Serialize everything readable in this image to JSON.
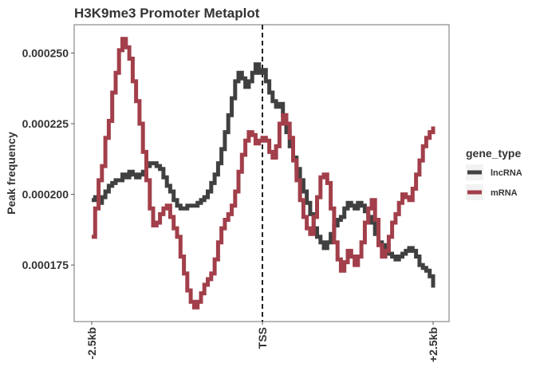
{
  "chart_data": {
    "type": "line",
    "title": "H3K9me3 Promoter Metaplot",
    "xlabel": "",
    "ylabel": "Peak frequency",
    "x_ticks": [
      "-2.5kb",
      "TSS",
      "+2.5kb"
    ],
    "xlim": [
      -2500,
      2500
    ],
    "ylim": [
      0.000155,
      0.00026
    ],
    "y_ticks": [
      0.000175,
      0.0002,
      0.000225,
      0.00025
    ],
    "y_tick_labels": [
      "0.000175",
      "0.000200",
      "0.000225",
      "0.000250"
    ],
    "vline_at": 0,
    "grid": false,
    "legend_position": "right",
    "legend_title": "gene_type",
    "series": [
      {
        "name": "lncRNA",
        "color": "#404040",
        "x": [
          -2500,
          -2450,
          -2400,
          -2350,
          -2300,
          -2250,
          -2200,
          -2150,
          -2100,
          -2050,
          -2000,
          -1950,
          -1900,
          -1850,
          -1800,
          -1750,
          -1700,
          -1650,
          -1600,
          -1550,
          -1500,
          -1450,
          -1400,
          -1350,
          -1300,
          -1250,
          -1200,
          -1150,
          -1100,
          -1050,
          -1000,
          -950,
          -900,
          -850,
          -800,
          -750,
          -700,
          -650,
          -600,
          -550,
          -500,
          -450,
          -400,
          -350,
          -300,
          -250,
          -200,
          -150,
          -100,
          -50,
          0,
          50,
          100,
          150,
          200,
          250,
          300,
          350,
          400,
          450,
          500,
          550,
          600,
          650,
          700,
          750,
          800,
          850,
          900,
          950,
          1000,
          1050,
          1100,
          1150,
          1200,
          1250,
          1300,
          1350,
          1400,
          1450,
          1500,
          1550,
          1600,
          1650,
          1700,
          1750,
          1800,
          1850,
          1900,
          1950,
          2000,
          2050,
          2100,
          2150,
          2200,
          2250,
          2300,
          2350,
          2400,
          2450,
          2500
        ],
        "values": [
          0.000198,
          0.000199,
          0.000197,
          0.000199,
          0.000201,
          0.000203,
          0.000204,
          0.000205,
          0.000205,
          0.000207,
          0.000206,
          0.000208,
          0.000207,
          0.000206,
          0.000207,
          0.000208,
          0.00021,
          0.000211,
          0.000211,
          0.00021,
          0.000209,
          0.000206,
          0.000203,
          0.000201,
          0.000198,
          0.000196,
          0.000195,
          0.000195,
          0.000196,
          0.000196,
          0.000196,
          0.000197,
          0.000198,
          0.000199,
          0.000201,
          0.000204,
          0.000207,
          0.000211,
          0.000216,
          0.000222,
          0.000228,
          0.000234,
          0.00024,
          0.000243,
          0.000241,
          0.000238,
          0.00024,
          0.000243,
          0.000246,
          0.000243,
          0.000244,
          0.00024,
          0.000236,
          0.000233,
          0.000231,
          0.000232,
          0.000228,
          0.000222,
          0.000217,
          0.000213,
          0.000209,
          0.000205,
          0.000201,
          0.000197,
          0.000193,
          0.000188,
          0.000185,
          0.000183,
          0.000181,
          0.000183,
          0.000186,
          0.000189,
          0.000191,
          0.000192,
          0.000195,
          0.000197,
          0.000196,
          0.000195,
          0.000197,
          0.000196,
          0.000194,
          0.000192,
          0.00019,
          0.000186,
          0.000183,
          0.000182,
          0.00018,
          0.000179,
          0.000178,
          0.000177,
          0.000178,
          0.000179,
          0.00018,
          0.000181,
          0.00018,
          0.000178,
          0.000175,
          0.000174,
          0.000173,
          0.000171,
          0.000167
        ]
      },
      {
        "name": "mRNA",
        "color": "#a23f4a",
        "x": [
          -2500,
          -2450,
          -2400,
          -2350,
          -2300,
          -2250,
          -2200,
          -2150,
          -2100,
          -2050,
          -2000,
          -1950,
          -1900,
          -1850,
          -1800,
          -1750,
          -1700,
          -1650,
          -1600,
          -1550,
          -1500,
          -1450,
          -1400,
          -1350,
          -1300,
          -1250,
          -1200,
          -1150,
          -1100,
          -1050,
          -1000,
          -950,
          -900,
          -850,
          -800,
          -750,
          -700,
          -650,
          -600,
          -550,
          -500,
          -450,
          -400,
          -350,
          -300,
          -250,
          -200,
          -150,
          -100,
          -50,
          0,
          50,
          100,
          150,
          200,
          250,
          300,
          350,
          400,
          450,
          500,
          550,
          600,
          650,
          700,
          750,
          800,
          850,
          900,
          950,
          1000,
          1050,
          1100,
          1150,
          1200,
          1250,
          1300,
          1350,
          1400,
          1450,
          1500,
          1550,
          1600,
          1650,
          1700,
          1750,
          1800,
          1850,
          1900,
          1950,
          2000,
          2050,
          2100,
          2150,
          2200,
          2250,
          2300,
          2350,
          2400,
          2450,
          2500
        ],
        "values": [
          0.000185,
          0.000195,
          0.000205,
          0.00021,
          0.00022,
          0.000226,
          0.000236,
          0.000243,
          0.000251,
          0.000255,
          0.000252,
          0.000248,
          0.00024,
          0.000233,
          0.000225,
          0.000215,
          0.000205,
          0.000195,
          0.000189,
          0.00019,
          0.000193,
          0.000195,
          0.000196,
          0.000192,
          0.000188,
          0.000185,
          0.000178,
          0.000172,
          0.000166,
          0.000162,
          0.00016,
          0.000162,
          0.000165,
          0.000168,
          0.00017,
          0.000172,
          0.000177,
          0.000183,
          0.000188,
          0.000191,
          0.000193,
          0.000196,
          0.000201,
          0.000208,
          0.000214,
          0.000219,
          0.000222,
          0.000221,
          0.000218,
          0.000219,
          0.00022,
          0.000219,
          0.000215,
          0.000213,
          0.000217,
          0.000225,
          0.000228,
          0.000225,
          0.00022,
          0.000212,
          0.000205,
          0.000198,
          0.000192,
          0.000188,
          0.000186,
          0.000192,
          0.000199,
          0.000206,
          0.000207,
          0.000204,
          0.000195,
          0.000183,
          0.000177,
          0.000173,
          0.000176,
          0.00018,
          0.000178,
          0.000175,
          0.000178,
          0.000183,
          0.00019,
          0.000195,
          0.000198,
          0.000191,
          0.000182,
          0.000178,
          0.00018,
          0.000185,
          0.00019,
          0.000193,
          0.000197,
          0.0002,
          0.000199,
          0.000198,
          0.000202,
          0.000207,
          0.000212,
          0.000217,
          0.00022,
          0.000222,
          0.000224
        ]
      }
    ]
  }
}
